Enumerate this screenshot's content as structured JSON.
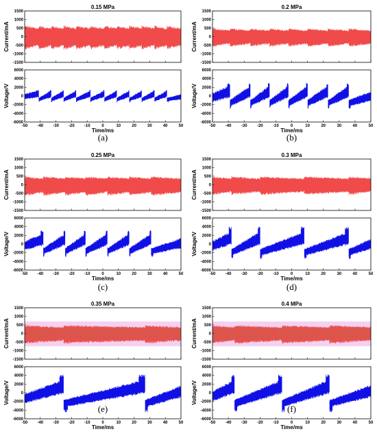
{
  "chart_data": [
    {
      "type": "line",
      "letter": "(a)",
      "title": "0.15 MPa",
      "xlabel": "Time/ms",
      "xlim": [
        -50,
        50
      ],
      "xticks": [
        -50,
        -40,
        -30,
        -20,
        -10,
        0,
        10,
        20,
        30,
        40,
        50
      ],
      "current": {
        "ylabel": "Current/mA",
        "ylim": [
          -1500,
          1500
        ],
        "yticks": [
          -1500,
          -1000,
          -500,
          0,
          500,
          1000,
          1500
        ],
        "color": "#f04a4a",
        "envelope_upper": 600,
        "envelope_lower": -700,
        "shaded": false
      },
      "voltage": {
        "ylabel": "Voltage/V",
        "ylim": [
          -6000,
          6000
        ],
        "yticks": [
          -6000,
          -4000,
          -2000,
          0,
          2000,
          4000,
          6000
        ],
        "color": "#1010e6",
        "spike_times": [
          -41,
          -33,
          -25,
          -17,
          -8,
          1,
          9,
          17,
          25,
          33,
          41
        ],
        "spike_peak": 1400,
        "spike_trough": -1500,
        "base_amplitude": 700
      }
    },
    {
      "type": "line",
      "letter": "(b)",
      "title": "0.2 MPa",
      "xlabel": "Time/ms",
      "xlim": [
        -50,
        50
      ],
      "xticks": [
        -50,
        -40,
        -30,
        -20,
        -10,
        0,
        10,
        20,
        30,
        40,
        50
      ],
      "current": {
        "ylabel": "Current/mA",
        "ylim": [
          -1500,
          1500
        ],
        "yticks": [
          -1500,
          -1000,
          -500,
          0,
          500,
          1000,
          1500
        ],
        "color": "#f04a4a",
        "envelope_upper": 450,
        "envelope_lower": -550,
        "shaded": false
      },
      "voltage": {
        "ylabel": "Voltage/V",
        "ylim": [
          -6000,
          6000
        ],
        "yticks": [
          -6000,
          -4000,
          -2000,
          0,
          2000,
          4000,
          6000
        ],
        "color": "#1010e6",
        "spike_times": [
          -39,
          -26,
          -14,
          -2,
          10,
          23,
          36
        ],
        "spike_peak": 3000,
        "spike_trough": -3000,
        "base_amplitude": 1200
      }
    },
    {
      "type": "line",
      "letter": "(c)",
      "title": "0.25 MPa",
      "xlabel": "Time/ms",
      "xlim": [
        -50,
        50
      ],
      "xticks": [
        -50,
        -40,
        -30,
        -20,
        -10,
        0,
        10,
        20,
        30,
        40,
        50
      ],
      "current": {
        "ylabel": "Current/mA",
        "ylim": [
          -1500,
          1500
        ],
        "yticks": [
          -1500,
          -1000,
          -500,
          0,
          500,
          1000,
          1500
        ],
        "color": "#f04a4a",
        "envelope_upper": 450,
        "envelope_lower": -600,
        "shaded": false
      },
      "voltage": {
        "ylabel": "Voltage/V",
        "ylim": [
          -6000,
          6000
        ],
        "yticks": [
          -6000,
          -4000,
          -2000,
          0,
          2000,
          4000,
          6000
        ],
        "color": "#1010e6",
        "spike_times": [
          -38,
          -24,
          -11,
          3,
          17,
          31
        ],
        "spike_peak": 3200,
        "spike_trough": -3000,
        "base_amplitude": 1200
      }
    },
    {
      "type": "line",
      "letter": "(d)",
      "title": "0.3 MPa",
      "xlabel": "Time/ms",
      "xlim": [
        -50,
        50
      ],
      "xticks": [
        -50,
        -40,
        -30,
        -20,
        -10,
        0,
        10,
        20,
        30,
        40,
        50
      ],
      "current": {
        "ylabel": "Current/mA",
        "ylim": [
          -1500,
          1500
        ],
        "yticks": [
          -1500,
          -1000,
          -500,
          0,
          500,
          1000,
          1500
        ],
        "color": "#f04a4a",
        "envelope_upper": 450,
        "envelope_lower": -550,
        "shaded": false
      },
      "voltage": {
        "ylabel": "Voltage/V",
        "ylim": [
          -6000,
          6000
        ],
        "yticks": [
          -6000,
          -4000,
          -2000,
          0,
          2000,
          4000,
          6000
        ],
        "color": "#1010e6",
        "spike_times": [
          -38,
          -20,
          8,
          36
        ],
        "spike_peak": 4000,
        "spike_trough": -3500,
        "base_amplitude": 1300
      }
    },
    {
      "type": "line",
      "letter": "(e)",
      "title": "0.35 MPa",
      "xlabel": "Time/ms",
      "xlim": [
        -50,
        50
      ],
      "xticks": [
        -50,
        -40,
        -30,
        -20,
        -10,
        0,
        10,
        20,
        30,
        40,
        50
      ],
      "current": {
        "ylabel": "Current/mA",
        "ylim": [
          -1500,
          1500
        ],
        "yticks": [
          -1500,
          -1000,
          -500,
          0,
          500,
          1000,
          1500
        ],
        "color": "#e85050",
        "envelope_upper": 450,
        "envelope_lower": -550,
        "shaded": true,
        "shade_color": "#f0b8e8"
      },
      "voltage": {
        "ylabel": "Voltage/V",
        "ylim": [
          -6000,
          6000
        ],
        "yticks": [
          -6000,
          -4000,
          -2000,
          0,
          2000,
          4000,
          6000
        ],
        "color": "#1010e6",
        "spike_times": [
          -25,
          27
        ],
        "spike_peak": 4200,
        "spike_trough": -4500,
        "base_amplitude": 1400
      }
    },
    {
      "type": "line",
      "letter": "(f)",
      "title": "0.4 MPa",
      "xlabel": "Time/ms",
      "xlim": [
        -50,
        50
      ],
      "xticks": [
        -50,
        -40,
        -30,
        -20,
        -10,
        0,
        10,
        20,
        30,
        40,
        50
      ],
      "current": {
        "ylabel": "Current/mA",
        "ylim": [
          -1500,
          1500
        ],
        "yticks": [
          -1500,
          -1000,
          -500,
          0,
          500,
          1000,
          1500
        ],
        "color": "#e85050",
        "envelope_upper": 450,
        "envelope_lower": -550,
        "shaded": true,
        "shade_color": "#f0b8e8"
      },
      "voltage": {
        "ylabel": "Voltage/V",
        "ylim": [
          -6000,
          6000
        ],
        "yticks": [
          -6000,
          -4000,
          -2000,
          0,
          2000,
          4000,
          6000
        ],
        "color": "#1010e6",
        "spike_times": [
          -36,
          -6,
          24
        ],
        "spike_peak": 4200,
        "spike_trough": -4500,
        "base_amplitude": 1400
      }
    }
  ]
}
